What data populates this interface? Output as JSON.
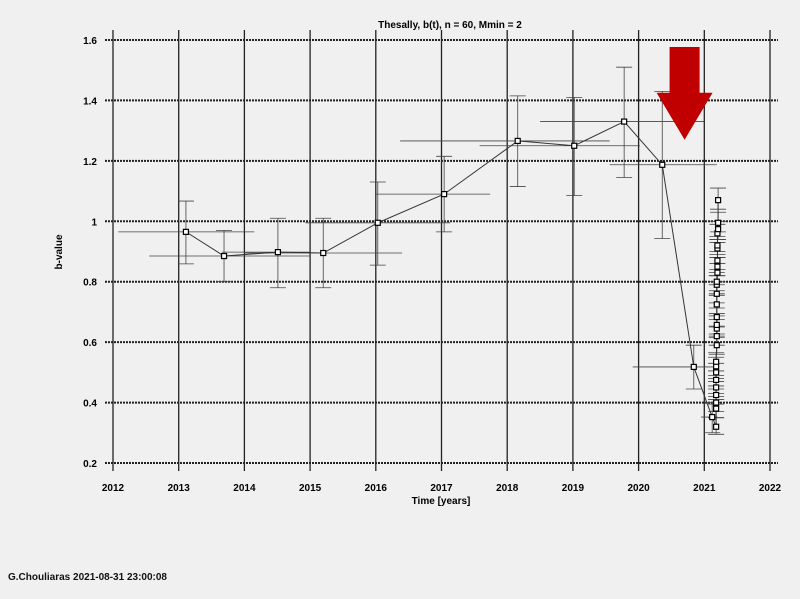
{
  "chart_data": {
    "type": "scatter",
    "title": "Thesally, b(t), n = 60, Mmin = 2",
    "xlabel": "Time [years]",
    "ylabel": "b-value",
    "xlim": [
      2012,
      2022
    ],
    "ylim": [
      0.2,
      1.6
    ],
    "xticks": [
      "2012",
      "2013",
      "2014",
      "2015",
      "2016",
      "2017",
      "2018",
      "2019",
      "2020",
      "2021",
      "2022"
    ],
    "yticks": [
      "0.2",
      "0.4",
      "0.6",
      "0.8",
      "1",
      "1.2",
      "1.4",
      "1.6"
    ],
    "grid": true,
    "connected_line": true,
    "marker": "open-square",
    "line_color": "#333333",
    "annotation": {
      "type": "arrow-down",
      "color": "#c00000",
      "x": 2020.7,
      "points_to_y": 1.27
    },
    "points_fields": [
      "x",
      "y",
      "x_low",
      "x_high",
      "y_low",
      "y_high"
    ],
    "points": [
      [
        2013.11,
        0.965,
        2012.08,
        2014.15,
        0.859,
        1.067
      ],
      [
        2013.69,
        0.885,
        2012.55,
        2015.0,
        0.8,
        0.97
      ],
      [
        2014.51,
        0.898,
        2013.66,
        2015.0,
        0.78,
        1.01
      ],
      [
        2015.2,
        0.895,
        2014.0,
        2016.4,
        0.78,
        1.01
      ],
      [
        2016.03,
        0.995,
        2014.93,
        2017.13,
        0.855,
        1.13
      ],
      [
        2017.04,
        1.09,
        2015.99,
        2017.74,
        0.965,
        1.215
      ],
      [
        2018.16,
        1.266,
        2016.37,
        2019.56,
        1.115,
        1.415
      ],
      [
        2019.02,
        1.25,
        2017.58,
        2020.02,
        1.085,
        1.41
      ],
      [
        2019.78,
        1.33,
        2018.5,
        2021.0,
        1.145,
        1.51
      ],
      [
        2020.36,
        1.187,
        2019.56,
        2021.19,
        0.943,
        1.43
      ],
      [
        2020.84,
        0.518,
        2019.91,
        2021.16,
        0.445,
        0.59
      ],
      [
        2021.12,
        0.352,
        2020.95,
        2021.2,
        0.3,
        0.4
      ],
      [
        2021.18,
        0.32,
        2021.16,
        2021.2,
        0.295,
        0.35
      ],
      [
        2021.18,
        0.38,
        2021.16,
        2021.21,
        0.35,
        0.41
      ],
      [
        2021.18,
        0.4,
        2021.16,
        2021.21,
        0.37,
        0.43
      ],
      [
        2021.18,
        0.425,
        2021.16,
        2021.21,
        0.395,
        0.455
      ],
      [
        2021.18,
        0.45,
        2021.16,
        2021.21,
        0.42,
        0.48
      ],
      [
        2021.18,
        0.475,
        2021.16,
        2021.21,
        0.445,
        0.505
      ],
      [
        2021.18,
        0.5,
        2021.16,
        2021.21,
        0.47,
        0.53
      ],
      [
        2021.18,
        0.52,
        2021.16,
        2021.21,
        0.49,
        0.55
      ],
      [
        2021.18,
        0.535,
        2021.16,
        2021.21,
        0.505,
        0.565
      ],
      [
        2021.19,
        0.59,
        2021.16,
        2021.22,
        0.56,
        0.62
      ],
      [
        2021.19,
        0.62,
        2021.16,
        2021.22,
        0.59,
        0.65
      ],
      [
        2021.19,
        0.645,
        2021.16,
        2021.22,
        0.615,
        0.675
      ],
      [
        2021.19,
        0.657,
        2021.16,
        2021.22,
        0.627,
        0.687
      ],
      [
        2021.19,
        0.683,
        2021.16,
        2021.22,
        0.653,
        0.713
      ],
      [
        2021.19,
        0.725,
        2021.16,
        2021.22,
        0.695,
        0.755
      ],
      [
        2021.19,
        0.76,
        2021.16,
        2021.22,
        0.73,
        0.79
      ],
      [
        2021.19,
        0.79,
        2021.16,
        2021.22,
        0.76,
        0.82
      ],
      [
        2021.19,
        0.8,
        2021.16,
        2021.22,
        0.77,
        0.83
      ],
      [
        2021.2,
        0.83,
        2021.17,
        2021.22,
        0.8,
        0.86
      ],
      [
        2021.2,
        0.85,
        2021.17,
        2021.22,
        0.82,
        0.88
      ],
      [
        2021.2,
        0.87,
        2021.17,
        2021.22,
        0.84,
        0.9
      ],
      [
        2021.2,
        0.91,
        2021.17,
        2021.23,
        0.88,
        0.94
      ],
      [
        2021.2,
        0.92,
        2021.17,
        2021.23,
        0.89,
        0.95
      ],
      [
        2021.2,
        0.96,
        2021.17,
        2021.23,
        0.93,
        0.99
      ],
      [
        2021.21,
        0.974,
        2021.17,
        2021.23,
        0.94,
        1.0
      ],
      [
        2021.21,
        0.995,
        2021.17,
        2021.23,
        0.965,
        1.03
      ],
      [
        2021.21,
        1.07,
        2021.17,
        2021.23,
        1.04,
        1.11
      ]
    ]
  },
  "footer": "G.Chouliaras 2021-08-31 23:00:08"
}
